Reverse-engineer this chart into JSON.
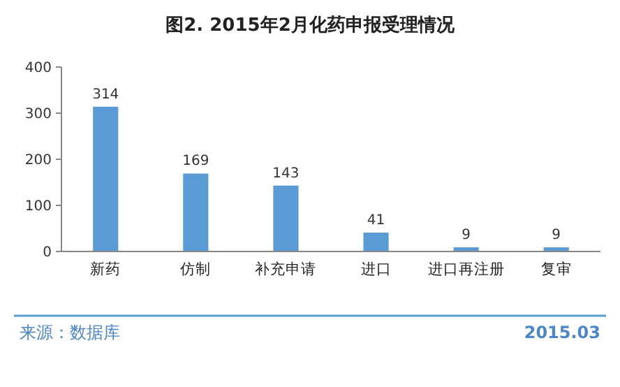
{
  "chart_data": {
    "type": "bar",
    "title": "图2. 2015年2月化药申报受理情况",
    "categories": [
      "新药",
      "仿制",
      "补充申请",
      "进口",
      "进口再注册",
      "复审"
    ],
    "values": [
      314,
      169,
      143,
      41,
      9,
      9
    ],
    "color": "#5b9bd5",
    "ylim": [
      0,
      400
    ],
    "yticks": [
      0,
      100,
      200,
      300,
      400
    ],
    "data_labels": true,
    "grid": false,
    "annotations": [
      "来源：数据库",
      "2015.03"
    ]
  }
}
